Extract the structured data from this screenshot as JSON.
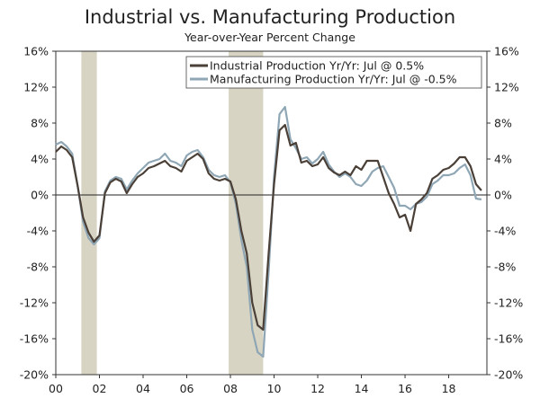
{
  "chart_data": {
    "type": "line",
    "title": "Industrial vs. Manufacturing Production",
    "subtitle": "Year-over-Year Percent Change",
    "xlabel": "",
    "ylabel": "",
    "ylim": [
      -20,
      16
    ],
    "yticks": [
      16,
      12,
      8,
      4,
      0,
      -4,
      -8,
      -12,
      -16,
      -20
    ],
    "ytick_labels": [
      "16%",
      "12%",
      "8%",
      "4%",
      "0%",
      "-4%",
      "-8%",
      "-12%",
      "-16%",
      "-20%"
    ],
    "xlim": [
      2000,
      2019.75
    ],
    "xticks": [
      2000,
      2002,
      2004,
      2006,
      2008,
      2010,
      2012,
      2014,
      2016,
      2018
    ],
    "xtick_labels": [
      "00",
      "02",
      "04",
      "06",
      "08",
      "10",
      "12",
      "14",
      "16",
      "18"
    ],
    "recessions": [
      [
        2001.17,
        2001.88
      ],
      [
        2007.92,
        2009.5
      ]
    ],
    "legend": {
      "position": "top-right"
    },
    "colors": {
      "industrial": "#4a4038",
      "manufacturing": "#8fa6b5",
      "recession": "#d8d4c3"
    },
    "series": [
      {
        "name": "Industrial Production Yr/Yr: Jul @ 0.5%",
        "x": [
          2000.0,
          2000.25,
          2000.5,
          2000.75,
          2001.0,
          2001.25,
          2001.5,
          2001.75,
          2002.0,
          2002.25,
          2002.5,
          2002.75,
          2003.0,
          2003.25,
          2003.5,
          2003.75,
          2004.0,
          2004.25,
          2004.5,
          2004.75,
          2005.0,
          2005.25,
          2005.5,
          2005.75,
          2006.0,
          2006.25,
          2006.5,
          2006.75,
          2007.0,
          2007.25,
          2007.5,
          2007.75,
          2008.0,
          2008.25,
          2008.5,
          2008.75,
          2009.0,
          2009.25,
          2009.5,
          2009.75,
          2010.0,
          2010.25,
          2010.5,
          2010.75,
          2011.0,
          2011.25,
          2011.5,
          2011.75,
          2012.0,
          2012.25,
          2012.5,
          2012.75,
          2013.0,
          2013.25,
          2013.5,
          2013.75,
          2014.0,
          2014.25,
          2014.5,
          2014.75,
          2015.0,
          2015.25,
          2015.5,
          2015.75,
          2016.0,
          2016.25,
          2016.5,
          2016.75,
          2017.0,
          2017.25,
          2017.5,
          2017.75,
          2018.0,
          2018.25,
          2018.5,
          2018.75,
          2019.0,
          2019.25,
          2019.5
        ],
        "values": [
          4.8,
          5.4,
          5.0,
          4.2,
          1.0,
          -2.5,
          -4.2,
          -5.2,
          -4.5,
          0.2,
          1.4,
          1.8,
          1.5,
          0.2,
          1.2,
          2.0,
          2.4,
          3.0,
          3.2,
          3.5,
          3.8,
          3.2,
          3.0,
          2.6,
          3.8,
          4.2,
          4.6,
          4.0,
          2.4,
          1.8,
          1.6,
          1.8,
          1.5,
          -0.5,
          -4.0,
          -6.5,
          -12.0,
          -14.5,
          -15.0,
          -6.5,
          1.2,
          7.2,
          7.8,
          5.5,
          5.8,
          3.6,
          3.8,
          3.2,
          3.4,
          4.2,
          3.0,
          2.5,
          2.2,
          2.6,
          2.2,
          3.2,
          2.8,
          3.8,
          3.8,
          3.8,
          2.0,
          0.2,
          -1.0,
          -2.5,
          -2.2,
          -4.0,
          -1.0,
          -0.5,
          0.2,
          1.8,
          2.2,
          2.8,
          3.0,
          3.5,
          4.2,
          4.2,
          3.2,
          1.2,
          0.5
        ]
      },
      {
        "name": "Manufacturing Production Yr/Yr: Jul @ -0.5%",
        "x": [
          2000.0,
          2000.25,
          2000.5,
          2000.75,
          2001.0,
          2001.25,
          2001.5,
          2001.75,
          2002.0,
          2002.25,
          2002.5,
          2002.75,
          2003.0,
          2003.25,
          2003.5,
          2003.75,
          2004.0,
          2004.25,
          2004.5,
          2004.75,
          2005.0,
          2005.25,
          2005.5,
          2005.75,
          2006.0,
          2006.25,
          2006.5,
          2006.75,
          2007.0,
          2007.25,
          2007.5,
          2007.75,
          2008.0,
          2008.25,
          2008.5,
          2008.75,
          2009.0,
          2009.25,
          2009.5,
          2009.75,
          2010.0,
          2010.25,
          2010.5,
          2010.75,
          2011.0,
          2011.25,
          2011.5,
          2011.75,
          2012.0,
          2012.25,
          2012.5,
          2012.75,
          2013.0,
          2013.25,
          2013.5,
          2013.75,
          2014.0,
          2014.25,
          2014.5,
          2014.75,
          2015.0,
          2015.25,
          2015.5,
          2015.75,
          2016.0,
          2016.25,
          2016.5,
          2016.75,
          2017.0,
          2017.25,
          2017.5,
          2017.75,
          2018.0,
          2018.25,
          2018.5,
          2018.75,
          2019.0,
          2019.25,
          2019.5
        ],
        "values": [
          5.6,
          5.9,
          5.4,
          4.6,
          1.0,
          -3.0,
          -4.8,
          -5.5,
          -4.8,
          0.4,
          1.6,
          2.0,
          1.8,
          0.6,
          1.6,
          2.4,
          3.0,
          3.6,
          3.8,
          4.0,
          4.6,
          3.8,
          3.6,
          3.2,
          4.4,
          4.8,
          5.0,
          4.2,
          2.8,
          2.2,
          2.0,
          2.2,
          1.4,
          -1.0,
          -5.0,
          -8.0,
          -15.0,
          -17.5,
          -18.0,
          -8.5,
          2.0,
          9.0,
          9.8,
          6.2,
          5.2,
          4.0,
          4.2,
          3.5,
          4.0,
          4.8,
          3.4,
          2.6,
          2.0,
          2.4,
          2.0,
          1.2,
          1.0,
          1.6,
          2.6,
          3.0,
          3.2,
          2.0,
          0.8,
          -1.2,
          -1.2,
          -1.6,
          -1.0,
          -0.8,
          -0.2,
          1.2,
          1.6,
          2.2,
          2.2,
          2.4,
          3.0,
          3.4,
          2.2,
          -0.4,
          -0.5
        ]
      }
    ]
  }
}
